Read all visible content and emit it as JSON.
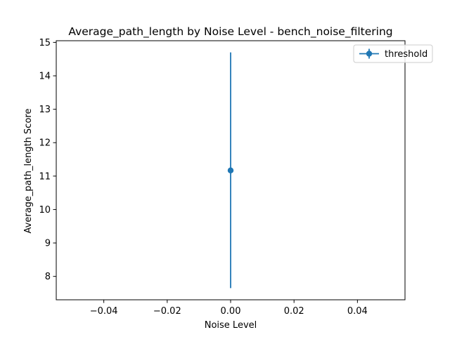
{
  "chart_data": {
    "type": "scatter",
    "title": "Average_path_length by Noise Level - bench_noise_filtering",
    "xlabel": "Noise Level",
    "ylabel": "Average_path_length Score",
    "xlim": [
      -0.055,
      0.055
    ],
    "ylim": [
      7.3,
      15.05
    ],
    "x_ticks": [
      -0.04,
      -0.02,
      0.0,
      0.02,
      0.04
    ],
    "x_tick_labels": [
      "−0.04",
      "−0.02",
      "0.00",
      "0.02",
      "0.04"
    ],
    "y_ticks": [
      8,
      9,
      10,
      11,
      12,
      13,
      14,
      15
    ],
    "y_tick_labels": [
      "8",
      "9",
      "10",
      "11",
      "12",
      "13",
      "14",
      "15"
    ],
    "grid": false,
    "legend_position": "top-right",
    "series": [
      {
        "name": "threshold",
        "color": "#1f77b4",
        "points": [
          {
            "x": 0.0,
            "y": 11.17,
            "err_low": 7.65,
            "err_high": 14.7
          }
        ]
      }
    ]
  }
}
